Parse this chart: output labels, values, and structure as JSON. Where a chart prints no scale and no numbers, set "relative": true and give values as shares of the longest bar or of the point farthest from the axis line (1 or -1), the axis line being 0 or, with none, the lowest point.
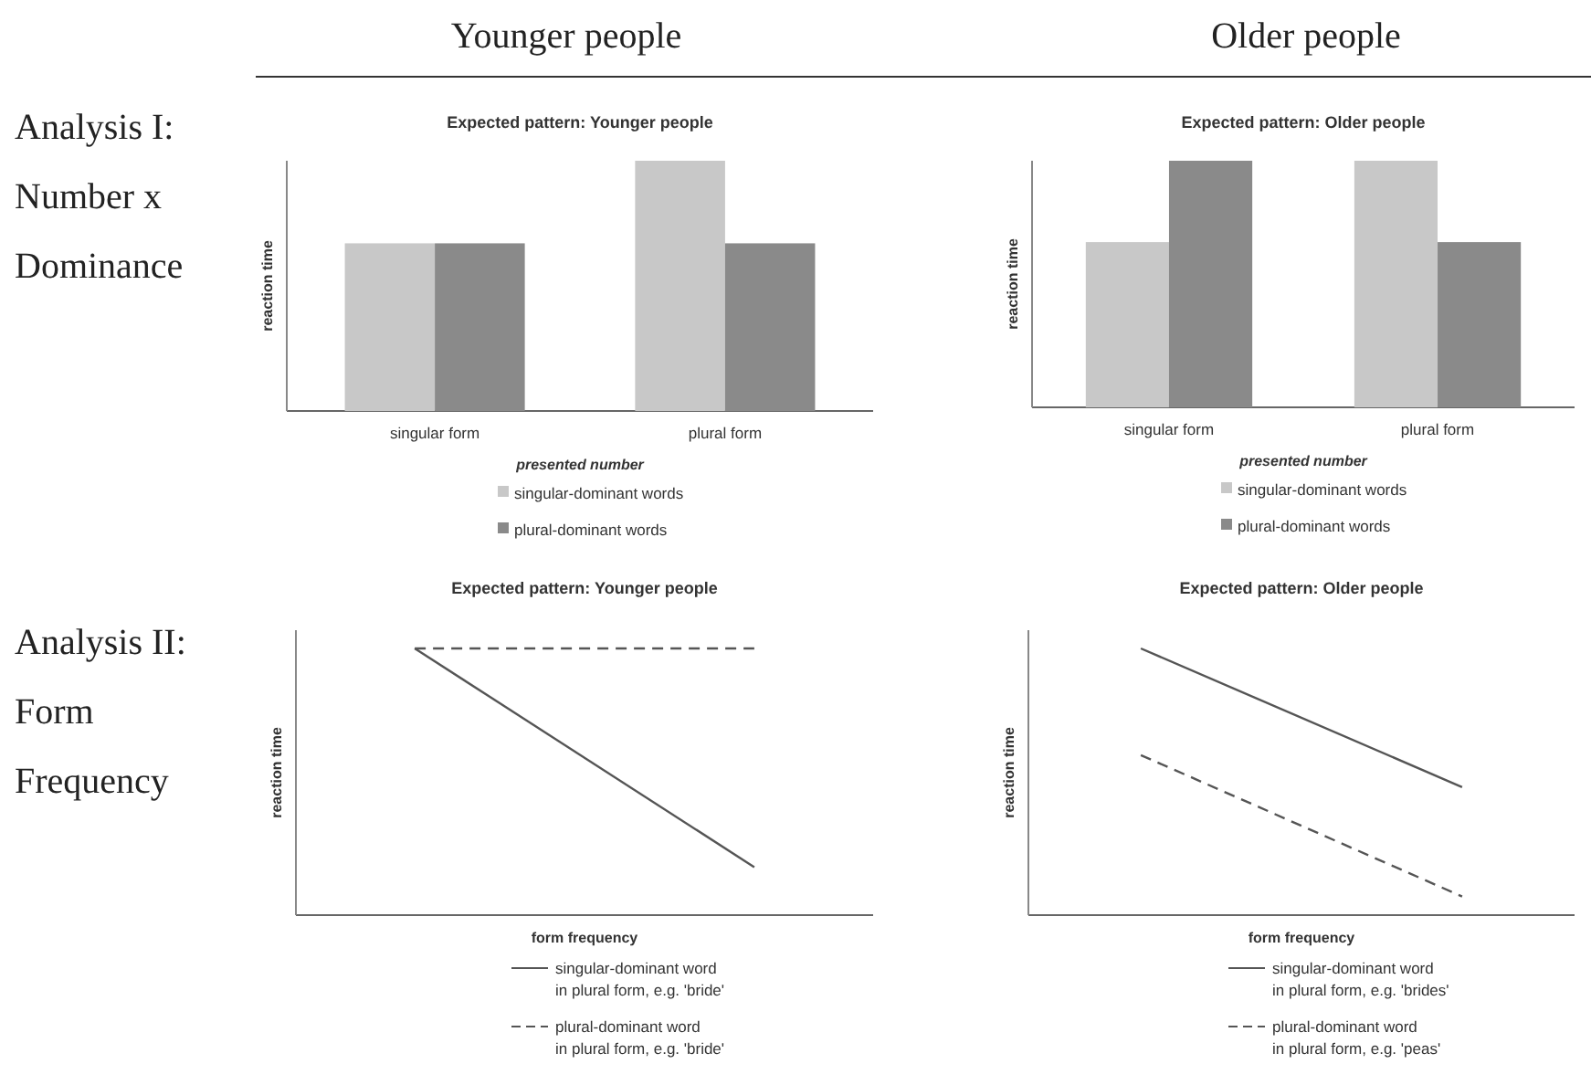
{
  "chart_data": [
    {
      "type": "other",
      "annotations": [
        "Younger people",
        "Older people",
        "Analysis I:",
        "Number x",
        "Dominance",
        "Analysis II:",
        "Form",
        "Frequency"
      ]
    },
    {
      "type": "bar",
      "title": "Expected pattern: Younger people",
      "xlabel": "presented number",
      "ylabel": "reaction time",
      "relative": true,
      "categories": [
        "singular form",
        "plural form"
      ],
      "legend": "bottom",
      "series": [
        {
          "name": "singular-dominant words",
          "color": "#c8c8c8",
          "values": [
            0.67,
            1
          ]
        },
        {
          "name": "plural-dominant words",
          "color": "#8a8a8a",
          "values": [
            0.67,
            0.67
          ]
        }
      ]
    },
    {
      "type": "bar",
      "title": "Expected pattern: Older people",
      "xlabel": "presented number",
      "ylabel": "reaction time",
      "relative": true,
      "categories": [
        "singular form",
        "plural form"
      ],
      "legend": "bottom",
      "series": [
        {
          "name": "singular-dominant words",
          "color": "#c8c8c8",
          "values": [
            0.67,
            1
          ]
        },
        {
          "name": "plural-dominant words",
          "color": "#8a8a8a",
          "values": [
            1,
            0.67
          ]
        }
      ]
    },
    {
      "type": "line",
      "title": "Expected pattern: Younger people",
      "xlabel": "form frequency",
      "ylabel": "reaction time",
      "relative": true,
      "categories": [
        null,
        null
      ],
      "legend": "bottom",
      "series": [
        {
          "name": "singular-dominant word\nin plural form,  e.g. 'bride'",
          "color": "#555555",
          "line_style": "solid",
          "values": [
            1,
            0.18
          ]
        },
        {
          "name": "plural-dominant word\nin plural form,  e.g. 'bride'",
          "color": "#555555",
          "line_style": "dashed",
          "values": [
            1,
            1
          ]
        }
      ]
    },
    {
      "type": "line",
      "title": "Expected pattern: Older people",
      "xlabel": "form frequency",
      "ylabel": "reaction time",
      "relative": true,
      "categories": [
        null,
        null
      ],
      "legend": "bottom",
      "series": [
        {
          "name": "singular-dominant word\nin plural form,  e.g. 'brides'",
          "color": "#555555",
          "line_style": "solid",
          "values": [
            1,
            0.48
          ]
        },
        {
          "name": "plural-dominant word\nin plural form,  e.g. 'peas'",
          "color": "#555555",
          "line_style": "dashed",
          "values": [
            0.6,
            0.07
          ]
        }
      ]
    }
  ]
}
